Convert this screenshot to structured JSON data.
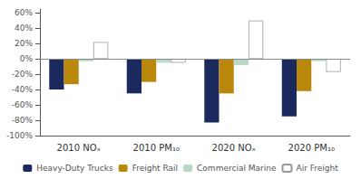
{
  "chart_data": {
    "type": "bar",
    "categories": [
      "2010 NOₓ",
      "2010 PM₁₀",
      "2020 NOₓ",
      "2020 PM₁₀"
    ],
    "series": [
      {
        "name": "Heavy-Duty Trucks",
        "color": "#1b2a5e",
        "values": [
          -40,
          -45,
          -83,
          -75
        ]
      },
      {
        "name": "Freight Rail",
        "color": "#b8870b",
        "values": [
          -33,
          -30,
          -45,
          -42
        ]
      },
      {
        "name": "Commercial Marine",
        "color": "#b8d8c8",
        "values": [
          -3,
          -5,
          -8,
          -3
        ]
      },
      {
        "name": "Air Freight",
        "color": "#ffffff",
        "values": [
          22,
          -5,
          50,
          -17
        ]
      }
    ],
    "ylim": [
      -100,
      65
    ],
    "yticks": [
      {
        "value": -100,
        "label": "-100%"
      },
      {
        "value": -80,
        "label": "-80%"
      },
      {
        "value": -60,
        "label": "-60%"
      },
      {
        "value": -40,
        "label": "-40%"
      },
      {
        "value": -20,
        "label": "-20%"
      },
      {
        "value": 0,
        "label": "0%"
      },
      {
        "value": 20,
        "label": "20%"
      },
      {
        "value": 40,
        "label": "40%"
      },
      {
        "value": 60,
        "label": "60%"
      }
    ],
    "grid": false,
    "legend": "bottom"
  }
}
